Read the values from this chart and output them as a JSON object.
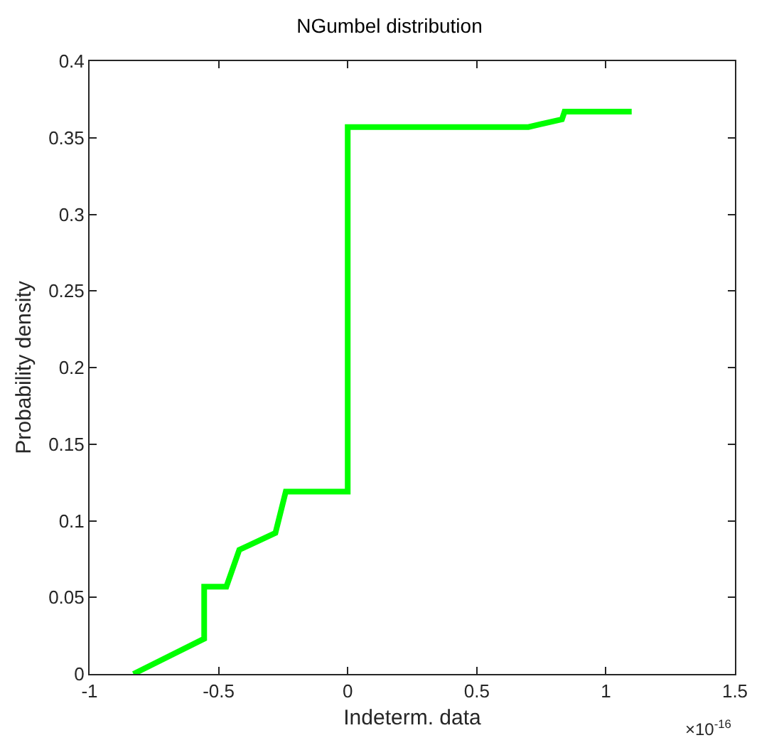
{
  "chart_data": {
    "type": "line",
    "title": "NGumbel distribution",
    "xlabel": "Indeterm. data",
    "ylabel": "Probability density",
    "x": [
      -0.83,
      -0.556,
      -0.556,
      -0.47,
      -0.42,
      -0.28,
      -0.24,
      0,
      0,
      0.7,
      0.83,
      0.84,
      1.1
    ],
    "series": [
      {
        "color": "#00ff00",
        "values": [
          0,
          0.023,
          0.057,
          0.057,
          0.081,
          0.092,
          0.119,
          0.119,
          0.357,
          0.357,
          0.362,
          0.367,
          0.367
        ]
      }
    ],
    "xlim": [
      -1,
      1.5
    ],
    "xticks": [
      -1,
      -0.5,
      0,
      0.5,
      1,
      1.5
    ],
    "ylim": [
      0,
      0.4
    ],
    "yticks": [
      0,
      0.05,
      0.1,
      0.15,
      0.2,
      0.25,
      0.3,
      0.35,
      0.4
    ],
    "annotations": [
      "×10$^{-16}$"
    ],
    "grid": false,
    "marker": "none",
    "line_style": "solid"
  }
}
